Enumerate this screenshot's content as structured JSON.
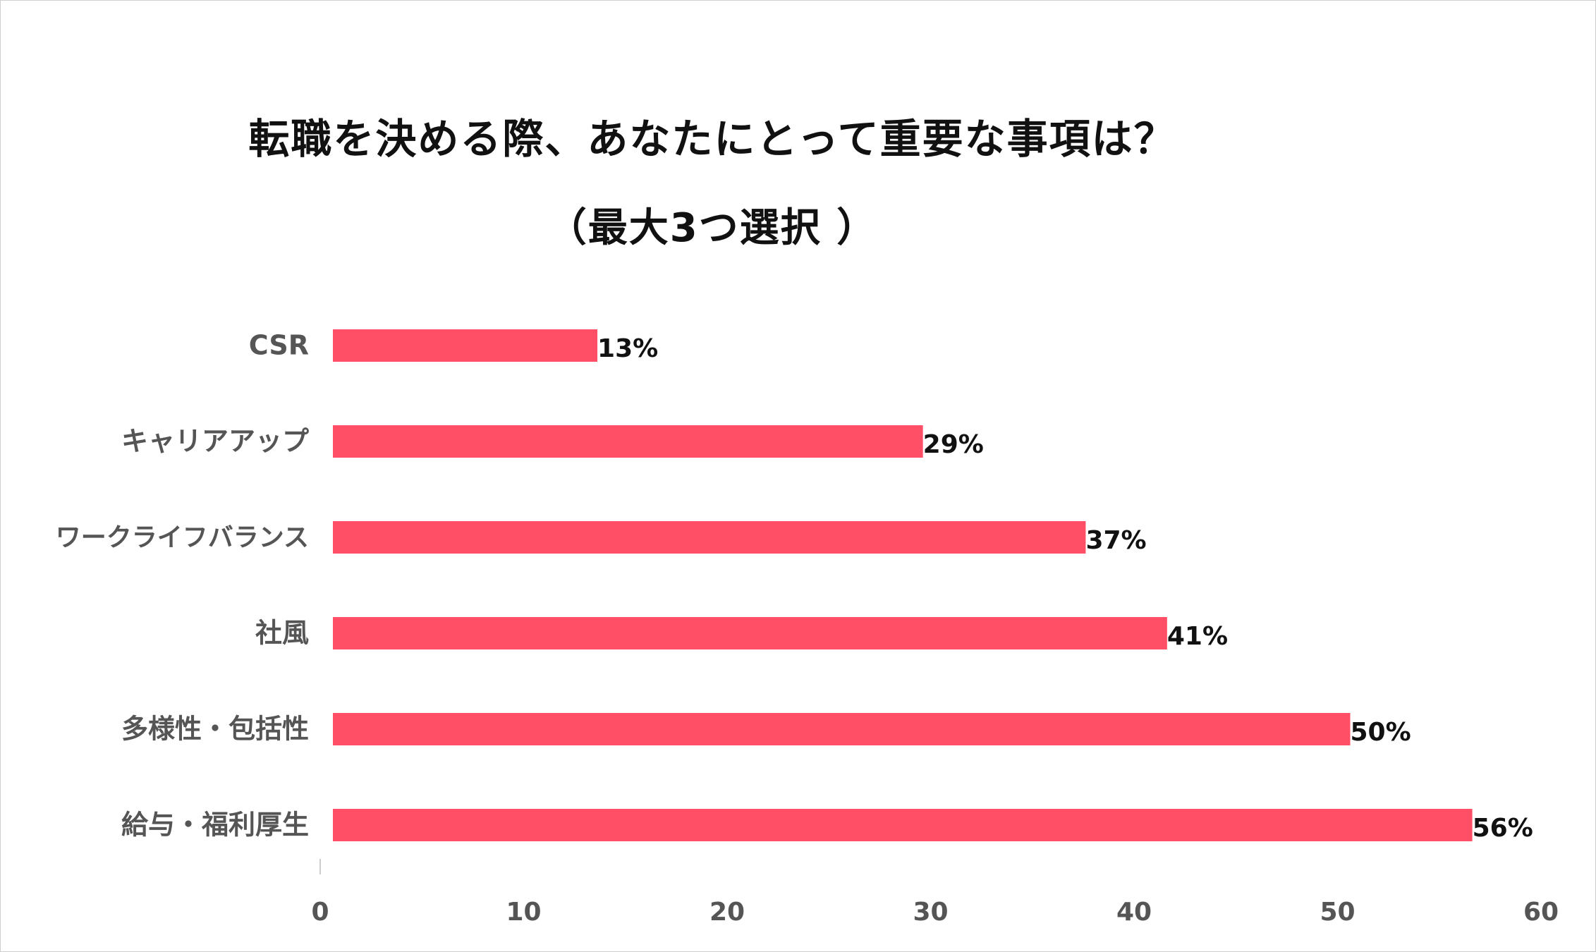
{
  "title": "転職を決める際、あなたにとって重要な事項は？",
  "subtitle": "（最大3つ選択 ）",
  "chart_data": {
    "type": "bar",
    "orientation": "horizontal",
    "categories": [
      "CSR",
      "キャリアアップ",
      "ワークライフバランス",
      "社風",
      "多様性・包括性",
      "給与・福利厚生"
    ],
    "values": [
      13,
      29,
      37,
      41,
      50,
      56
    ],
    "value_labels": [
      "13%",
      "29%",
      "37%",
      "41%",
      "50%",
      "56%"
    ],
    "xlim": [
      0,
      60
    ],
    "xticks": [
      0,
      10,
      20,
      30,
      40,
      50,
      60
    ],
    "xtick_labels": [
      "0",
      "10",
      "20",
      "30",
      "40",
      "50",
      "60"
    ],
    "grid": false,
    "bar_color": "#ff4f66"
  }
}
